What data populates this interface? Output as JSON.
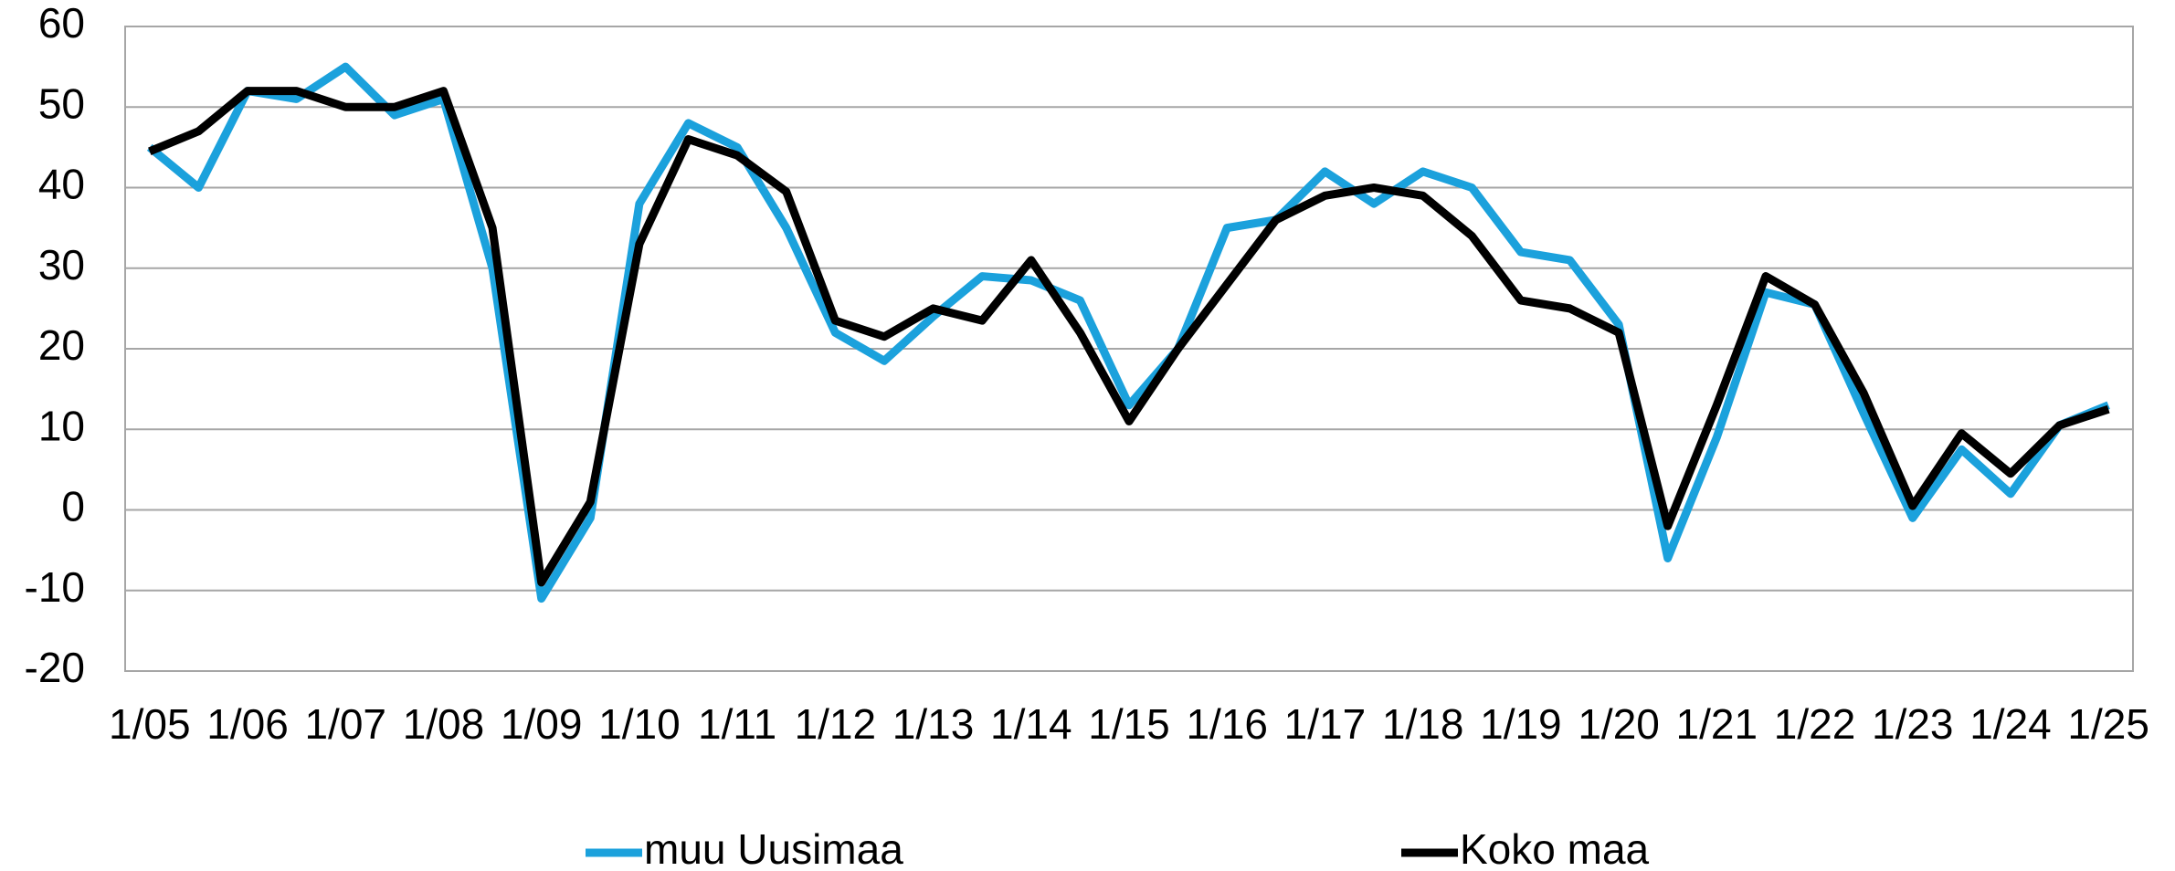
{
  "chart_data": {
    "type": "line",
    "categories": [
      "1/05",
      null,
      "1/06",
      null,
      "1/07",
      null,
      "1/08",
      null,
      "1/09",
      null,
      "1/10",
      null,
      "1/11",
      null,
      "1/12",
      null,
      "1/13",
      null,
      "1/14",
      null,
      "1/15",
      null,
      "1/16",
      null,
      "1/17",
      null,
      "1/18",
      null,
      "1/19",
      null,
      "1/20",
      null,
      "1/21",
      null,
      "1/22",
      null,
      "1/23",
      null,
      "1/24",
      null,
      "1/25"
    ],
    "series": [
      {
        "name": "muu Uusimaa",
        "color": "#1ba1dc",
        "values": [
          45,
          40,
          52,
          51,
          55,
          49,
          51,
          30,
          -11,
          -1,
          38,
          48,
          45,
          35,
          22,
          18.5,
          24,
          29,
          28.5,
          26,
          13,
          20,
          35,
          36,
          42,
          38,
          42,
          40,
          32,
          31,
          23,
          -6,
          9,
          27,
          25.5,
          12,
          -1,
          7.5,
          2,
          10.5,
          13
        ]
      },
      {
        "name": "Koko maa",
        "color": "#000000",
        "values": [
          44.5,
          47,
          52,
          52,
          50,
          50,
          52,
          35,
          -9,
          1,
          33,
          46,
          44,
          39.5,
          23.5,
          21.5,
          25,
          23.5,
          31,
          22,
          11,
          20,
          28,
          36,
          39,
          40,
          39,
          34,
          26,
          25,
          22,
          -2,
          13,
          29,
          25.5,
          14.5,
          0.5,
          9.5,
          4.5,
          10.5,
          12.5
        ]
      }
    ],
    "ylim": [
      -20,
      60
    ],
    "yticks": [
      -20,
      -10,
      0,
      10,
      20,
      30,
      40,
      50,
      60
    ],
    "grid": true,
    "legend": "bottom"
  }
}
